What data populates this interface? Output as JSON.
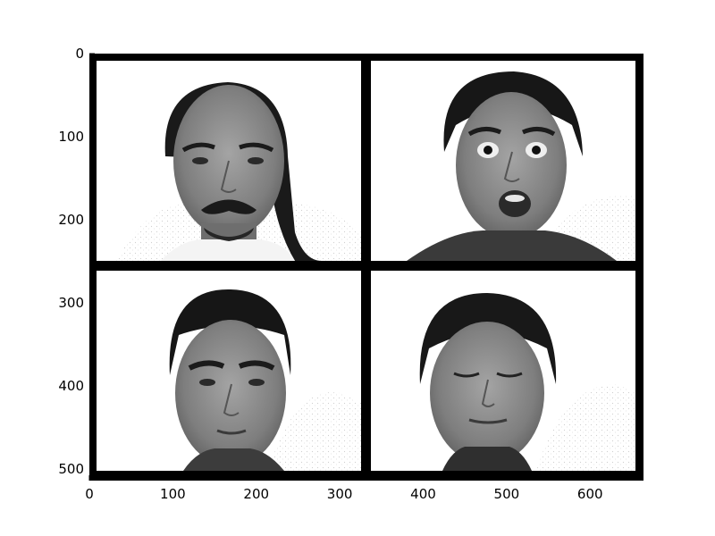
{
  "image": {
    "description_panels": [
      {
        "subject": "face",
        "expression": "neutral",
        "position": "top-left"
      },
      {
        "subject": "face",
        "expression": "surprise",
        "position": "top-right"
      },
      {
        "subject": "face",
        "expression": "neutral",
        "position": "bottom-left"
      },
      {
        "subject": "face",
        "expression": "eyes-closed",
        "position": "bottom-right"
      }
    ]
  },
  "axes": {
    "x_ticks": [
      "0",
      "100",
      "200",
      "300",
      "400",
      "500",
      "600"
    ],
    "y_ticks": [
      "0",
      "100",
      "200",
      "300",
      "400",
      "500"
    ],
    "x_range": [
      0,
      664
    ],
    "y_range": [
      514,
      0
    ],
    "grid": false
  },
  "colors": {
    "frame": "#000000",
    "background": "#ffffff",
    "wall": "#f2f2f2",
    "hair": "#1a1a1a",
    "skin_light": "#8e8e8e",
    "skin_dark": "#6a6a6a",
    "shirt": "#3a3a3a"
  }
}
